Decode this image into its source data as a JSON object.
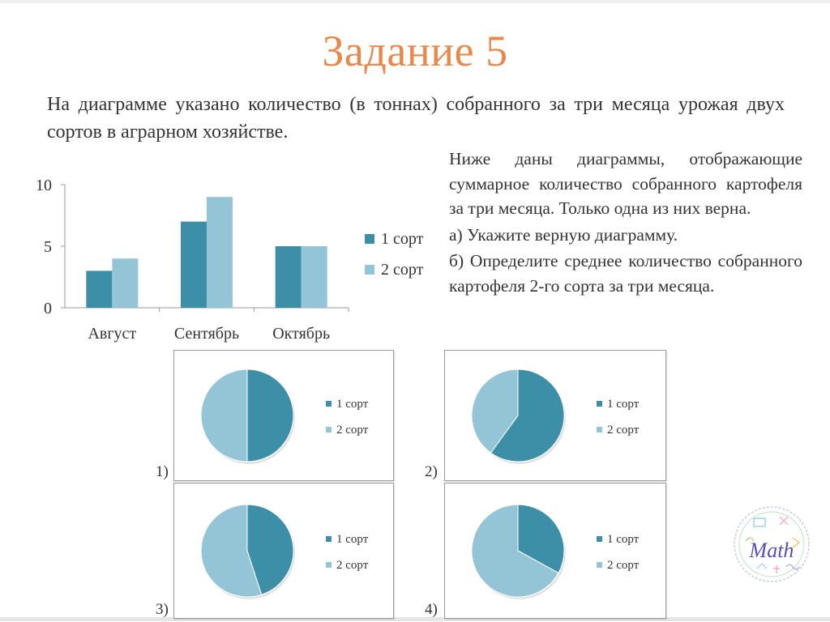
{
  "title": "Задание 5",
  "intro": "На диаграмме указано количество (в тоннах) собранного за три месяца урожая двух сортов в аграрном хозяйстве.",
  "question": {
    "paragraph": "Ниже даны диаграммы, отображающие суммарное количество собранного картофеля за три месяца. Только одна из них верна.",
    "part_a": "а) Укажите верную диаграмму.",
    "part_b": "б) Определите среднее количество собранного картофеля 2-го сорта за три месяца."
  },
  "logo_text": "Math",
  "chart_data": [
    {
      "type": "bar",
      "categories": [
        "Август",
        "Сентябрь",
        "Октябрь"
      ],
      "series": [
        {
          "name": "1 сорт",
          "values": [
            3,
            7,
            5
          ],
          "color": "#3d8fa8"
        },
        {
          "name": "2 сорт",
          "values": [
            4,
            9,
            5
          ],
          "color": "#93c5d6"
        }
      ],
      "ylim": [
        0,
        10
      ],
      "yticks": [
        "0",
        "5",
        "10"
      ],
      "legend": "right"
    },
    {
      "type": "pie",
      "label": "1)",
      "categories": [
        "1 сорт",
        "2 сорт"
      ],
      "values": [
        50,
        50
      ],
      "colors": [
        "#3d8fa8",
        "#93c5d6"
      ],
      "legend": "right"
    },
    {
      "type": "pie",
      "label": "2)",
      "categories": [
        "1 сорт",
        "2 сорт"
      ],
      "values": [
        60,
        40
      ],
      "colors": [
        "#3d8fa8",
        "#93c5d6"
      ],
      "legend": "right"
    },
    {
      "type": "pie",
      "label": "3)",
      "categories": [
        "1 сорт",
        "2 сорт"
      ],
      "values": [
        45,
        55
      ],
      "colors": [
        "#3d8fa8",
        "#93c5d6"
      ],
      "legend": "right"
    },
    {
      "type": "pie",
      "label": "4)",
      "categories": [
        "1 сорт",
        "2 сорт"
      ],
      "values": [
        33,
        67
      ],
      "colors": [
        "#3d8fa8",
        "#93c5d6"
      ],
      "legend": "right"
    }
  ]
}
